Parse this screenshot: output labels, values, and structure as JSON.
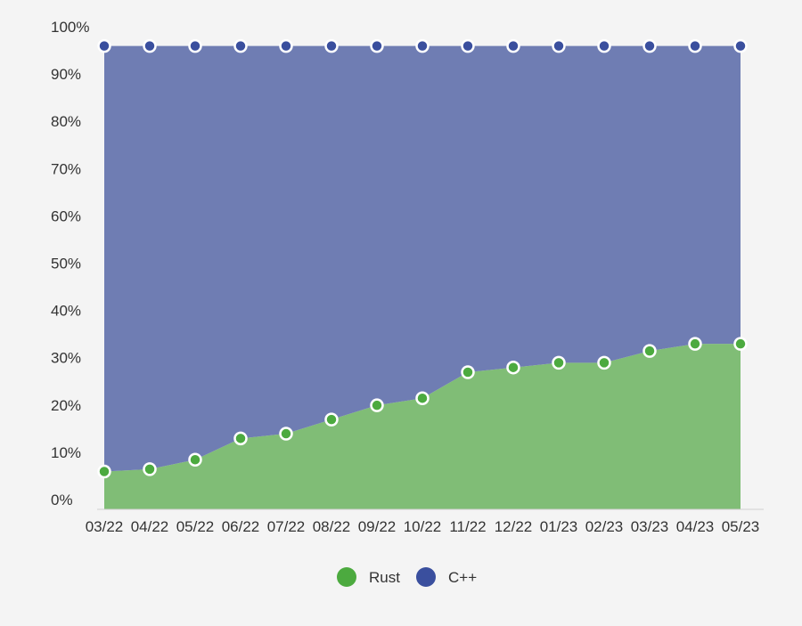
{
  "chart_data": {
    "type": "area",
    "stacked": true,
    "normalized": true,
    "categories": [
      "03/22",
      "04/22",
      "05/22",
      "06/22",
      "07/22",
      "08/22",
      "09/22",
      "10/22",
      "11/22",
      "12/22",
      "01/23",
      "02/23",
      "03/23",
      "04/23",
      "05/23"
    ],
    "series": [
      {
        "name": "Rust",
        "color": "#4caa3f",
        "fill": "#80bd76",
        "values": [
          8,
          8.5,
          10.5,
          15,
          16,
          19,
          22,
          23.5,
          29,
          30,
          31,
          31,
          33.5,
          35,
          35
        ]
      },
      {
        "name": "C++",
        "color": "#3a4f9e",
        "fill": "#6f7db3",
        "values": [
          90,
          89.5,
          87.5,
          83,
          82,
          79,
          76,
          74.5,
          69,
          68,
          67,
          67,
          64.5,
          63,
          63
        ]
      }
    ],
    "ylim": [
      0,
      100
    ],
    "yticks": [
      "0%",
      "10%",
      "20%",
      "30%",
      "40%",
      "50%",
      "60%",
      "70%",
      "80%",
      "90%",
      "100%"
    ],
    "ytick_values": [
      0,
      10,
      20,
      30,
      40,
      50,
      60,
      70,
      80,
      90,
      100
    ],
    "xlabel": "",
    "ylabel": "",
    "grid": false,
    "legend": "bottom"
  }
}
